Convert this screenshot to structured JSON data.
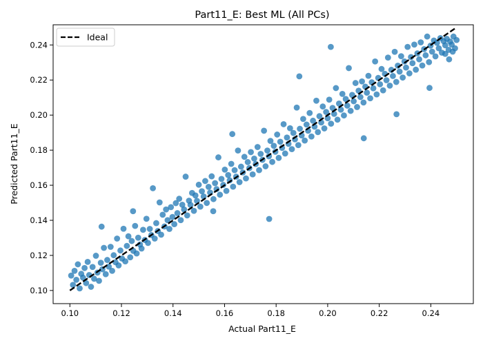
{
  "chart_data": {
    "type": "scatter",
    "title": "Part11_E: Best ML (All PCs)",
    "xlabel": "Actual Part11_E",
    "ylabel": "Predicted Part11_E",
    "xlim": [
      0.0935,
      0.2565
    ],
    "ylim": [
      0.0925,
      0.2515
    ],
    "xticks": [
      0.1,
      0.12,
      0.14,
      0.16,
      0.18,
      0.2,
      0.22,
      0.24
    ],
    "xtick_labels": [
      "0.10",
      "0.12",
      "0.14",
      "0.16",
      "0.18",
      "0.20",
      "0.22",
      "0.24"
    ],
    "yticks": [
      0.1,
      0.12,
      0.14,
      0.16,
      0.18,
      0.2,
      0.22,
      0.24
    ],
    "ytick_labels": [
      "0.10",
      "0.12",
      "0.14",
      "0.16",
      "0.18",
      "0.20",
      "0.22",
      "0.24"
    ],
    "grid": false,
    "legend": {
      "position": "upper-left",
      "entries": [
        "Ideal"
      ]
    },
    "series": [
      {
        "name": "",
        "kind": "scatter",
        "color": "#1f77b4",
        "alpha": 0.75,
        "points": [
          [
            0.1005,
            0.1085
          ],
          [
            0.1012,
            0.1032
          ],
          [
            0.1018,
            0.1112
          ],
          [
            0.1025,
            0.1061
          ],
          [
            0.1031,
            0.1149
          ],
          [
            0.1038,
            0.1012
          ],
          [
            0.1044,
            0.1095
          ],
          [
            0.1051,
            0.1073
          ],
          [
            0.1057,
            0.1128
          ],
          [
            0.1063,
            0.1042
          ],
          [
            0.1069,
            0.1163
          ],
          [
            0.1075,
            0.1088
          ],
          [
            0.1082,
            0.1021
          ],
          [
            0.1088,
            0.1134
          ],
          [
            0.1094,
            0.1067
          ],
          [
            0.1101,
            0.1198
          ],
          [
            0.1107,
            0.1102
          ],
          [
            0.1113,
            0.1055
          ],
          [
            0.112,
            0.1158
          ],
          [
            0.1126,
            0.1121
          ],
          [
            0.1132,
            0.1243
          ],
          [
            0.1139,
            0.1093
          ],
          [
            0.1145,
            0.1174
          ],
          [
            0.1151,
            0.1136
          ],
          [
            0.1158,
            0.1249
          ],
          [
            0.1164,
            0.1112
          ],
          [
            0.117,
            0.1201
          ],
          [
            0.1177,
            0.1161
          ],
          [
            0.1183,
            0.1296
          ],
          [
            0.1189,
            0.1143
          ],
          [
            0.1196,
            0.1228
          ],
          [
            0.1202,
            0.1182
          ],
          [
            0.1208,
            0.1352
          ],
          [
            0.1215,
            0.1166
          ],
          [
            0.1221,
            0.1254
          ],
          [
            0.1227,
            0.1309
          ],
          [
            0.1234,
            0.1189
          ],
          [
            0.124,
            0.1282
          ],
          [
            0.1246,
            0.1226
          ],
          [
            0.1253,
            0.1368
          ],
          [
            0.1259,
            0.1211
          ],
          [
            0.1265,
            0.1301
          ],
          [
            0.1272,
            0.1262
          ],
          [
            0.1278,
            0.1239
          ],
          [
            0.1284,
            0.1346
          ],
          [
            0.1291,
            0.1288
          ],
          [
            0.1297,
            0.1409
          ],
          [
            0.1303,
            0.1271
          ],
          [
            0.131,
            0.1351
          ],
          [
            0.1316,
            0.1316
          ],
          [
            0.1322,
            0.1583
          ],
          [
            0.1329,
            0.1296
          ],
          [
            0.1335,
            0.1384
          ],
          [
            0.1341,
            0.1339
          ],
          [
            0.1348,
            0.1502
          ],
          [
            0.1354,
            0.1318
          ],
          [
            0.136,
            0.1432
          ],
          [
            0.1367,
            0.1365
          ],
          [
            0.1373,
            0.1462
          ],
          [
            0.1379,
            0.1401
          ],
          [
            0.1386,
            0.1351
          ],
          [
            0.1392,
            0.1475
          ],
          [
            0.1398,
            0.1419
          ],
          [
            0.1405,
            0.1378
          ],
          [
            0.1411,
            0.1498
          ],
          [
            0.1417,
            0.1441
          ],
          [
            0.1424,
            0.1523
          ],
          [
            0.143,
            0.1401
          ],
          [
            0.1436,
            0.1489
          ],
          [
            0.1443,
            0.1462
          ],
          [
            0.1449,
            0.1649
          ],
          [
            0.1455,
            0.1428
          ],
          [
            0.1462,
            0.1512
          ],
          [
            0.1468,
            0.1488
          ],
          [
            0.1474,
            0.1556
          ],
          [
            0.1481,
            0.1454
          ],
          [
            0.1487,
            0.1542
          ],
          [
            0.1493,
            0.1511
          ],
          [
            0.15,
            0.1603
          ],
          [
            0.1506,
            0.1478
          ],
          [
            0.1512,
            0.1566
          ],
          [
            0.1519,
            0.1536
          ],
          [
            0.1525,
            0.1624
          ],
          [
            0.1531,
            0.1499
          ],
          [
            0.1538,
            0.1591
          ],
          [
            0.1544,
            0.1558
          ],
          [
            0.155,
            0.1651
          ],
          [
            0.1557,
            0.1521
          ],
          [
            0.1563,
            0.1612
          ],
          [
            0.1569,
            0.1578
          ],
          [
            0.1576,
            0.1759
          ],
          [
            0.1582,
            0.1546
          ],
          [
            0.1588,
            0.1636
          ],
          [
            0.1595,
            0.1602
          ],
          [
            0.1601,
            0.1689
          ],
          [
            0.1607,
            0.1568
          ],
          [
            0.1614,
            0.1658
          ],
          [
            0.162,
            0.1628
          ],
          [
            0.1626,
            0.1722
          ],
          [
            0.1633,
            0.1592
          ],
          [
            0.1639,
            0.1686
          ],
          [
            0.1645,
            0.1649
          ],
          [
            0.1652,
            0.1798
          ],
          [
            0.1658,
            0.1618
          ],
          [
            0.1664,
            0.1706
          ],
          [
            0.1671,
            0.1673
          ],
          [
            0.1677,
            0.1762
          ],
          [
            0.1683,
            0.1639
          ],
          [
            0.169,
            0.1732
          ],
          [
            0.1696,
            0.1698
          ],
          [
            0.1702,
            0.1789
          ],
          [
            0.1709,
            0.1662
          ],
          [
            0.1715,
            0.1752
          ],
          [
            0.1721,
            0.1721
          ],
          [
            0.1728,
            0.1818
          ],
          [
            0.1734,
            0.1686
          ],
          [
            0.174,
            0.1779
          ],
          [
            0.1747,
            0.1745
          ],
          [
            0.1753,
            0.1911
          ],
          [
            0.1759,
            0.1708
          ],
          [
            0.1766,
            0.1798
          ],
          [
            0.1772,
            0.1765
          ],
          [
            0.1778,
            0.1853
          ],
          [
            0.1785,
            0.1733
          ],
          [
            0.1791,
            0.1825
          ],
          [
            0.1797,
            0.1791
          ],
          [
            0.1804,
            0.1889
          ],
          [
            0.181,
            0.1756
          ],
          [
            0.1816,
            0.1848
          ],
          [
            0.1823,
            0.1813
          ],
          [
            0.1829,
            0.1948
          ],
          [
            0.1835,
            0.1781
          ],
          [
            0.1842,
            0.1872
          ],
          [
            0.1848,
            0.1836
          ],
          [
            0.1854,
            0.1925
          ],
          [
            0.1861,
            0.1806
          ],
          [
            0.1867,
            0.1898
          ],
          [
            0.1873,
            0.1862
          ],
          [
            0.188,
            0.2043
          ],
          [
            0.1886,
            0.1829
          ],
          [
            0.1892,
            0.1922
          ],
          [
            0.1899,
            0.1884
          ],
          [
            0.1905,
            0.1978
          ],
          [
            0.1911,
            0.1855
          ],
          [
            0.1918,
            0.1946
          ],
          [
            0.1924,
            0.1911
          ],
          [
            0.193,
            0.2012
          ],
          [
            0.1937,
            0.1878
          ],
          [
            0.1943,
            0.1968
          ],
          [
            0.1949,
            0.1934
          ],
          [
            0.1956,
            0.2082
          ],
          [
            0.1962,
            0.1903
          ],
          [
            0.1968,
            0.1994
          ],
          [
            0.1975,
            0.1958
          ],
          [
            0.1981,
            0.2049
          ],
          [
            0.1987,
            0.1924
          ],
          [
            0.1994,
            0.2018
          ],
          [
            0.2,
            0.1982
          ],
          [
            0.2006,
            0.2088
          ],
          [
            0.2013,
            0.1951
          ],
          [
            0.2019,
            0.2041
          ],
          [
            0.2025,
            0.2007
          ],
          [
            0.2032,
            0.2154
          ],
          [
            0.2038,
            0.1974
          ],
          [
            0.2044,
            0.2066
          ],
          [
            0.2051,
            0.2031
          ],
          [
            0.2057,
            0.2121
          ],
          [
            0.2063,
            0.1998
          ],
          [
            0.207,
            0.2092
          ],
          [
            0.2076,
            0.2054
          ],
          [
            0.2082,
            0.2268
          ],
          [
            0.2089,
            0.2024
          ],
          [
            0.2095,
            0.2115
          ],
          [
            0.2101,
            0.2079
          ],
          [
            0.2108,
            0.2183
          ],
          [
            0.2114,
            0.2046
          ],
          [
            0.212,
            0.2139
          ],
          [
            0.2127,
            0.2103
          ],
          [
            0.2133,
            0.2192
          ],
          [
            0.2139,
            0.2072
          ],
          [
            0.2146,
            0.2162
          ],
          [
            0.2152,
            0.2128
          ],
          [
            0.2158,
            0.2224
          ],
          [
            0.2165,
            0.2096
          ],
          [
            0.2171,
            0.2187
          ],
          [
            0.2177,
            0.2153
          ],
          [
            0.2184,
            0.2306
          ],
          [
            0.219,
            0.2118
          ],
          [
            0.2196,
            0.2212
          ],
          [
            0.2203,
            0.2176
          ],
          [
            0.2209,
            0.2263
          ],
          [
            0.2215,
            0.2141
          ],
          [
            0.2222,
            0.2235
          ],
          [
            0.2228,
            0.2199
          ],
          [
            0.2234,
            0.2328
          ],
          [
            0.2241,
            0.2168
          ],
          [
            0.2247,
            0.2258
          ],
          [
            0.2253,
            0.2223
          ],
          [
            0.226,
            0.2361
          ],
          [
            0.2266,
            0.2189
          ],
          [
            0.2272,
            0.2282
          ],
          [
            0.2279,
            0.2248
          ],
          [
            0.2285,
            0.2336
          ],
          [
            0.2291,
            0.2214
          ],
          [
            0.2298,
            0.2306
          ],
          [
            0.2304,
            0.2271
          ],
          [
            0.231,
            0.2389
          ],
          [
            0.2317,
            0.2238
          ],
          [
            0.2323,
            0.2331
          ],
          [
            0.2329,
            0.2296
          ],
          [
            0.2336,
            0.2402
          ],
          [
            0.2342,
            0.2259
          ],
          [
            0.2348,
            0.2352
          ],
          [
            0.2355,
            0.2318
          ],
          [
            0.2361,
            0.2415
          ],
          [
            0.2367,
            0.2283
          ],
          [
            0.2374,
            0.2376
          ],
          [
            0.238,
            0.2341
          ],
          [
            0.2386,
            0.2448
          ],
          [
            0.2393,
            0.2302
          ],
          [
            0.2399,
            0.2396
          ],
          [
            0.2405,
            0.2362
          ],
          [
            0.2412,
            0.2425
          ],
          [
            0.2418,
            0.2335
          ],
          [
            0.2424,
            0.2412
          ],
          [
            0.2431,
            0.2381
          ],
          [
            0.2437,
            0.2439
          ],
          [
            0.2443,
            0.2356
          ],
          [
            0.245,
            0.2421
          ],
          [
            0.2456,
            0.2398
          ],
          [
            0.2462,
            0.2435
          ],
          [
            0.2469,
            0.2372
          ],
          [
            0.2475,
            0.2419
          ],
          [
            0.2481,
            0.2402
          ],
          [
            0.2488,
            0.2448
          ],
          [
            0.2494,
            0.2381
          ],
          [
            0.25,
            0.2428
          ],
          [
            0.2485,
            0.2362
          ],
          [
            0.2471,
            0.2318
          ],
          [
            0.2456,
            0.2349
          ],
          [
            0.1773,
            0.1408
          ],
          [
            0.2012,
            0.2389
          ],
          [
            0.1556,
            0.1452
          ],
          [
            0.1245,
            0.1452
          ],
          [
            0.2267,
            0.2005
          ],
          [
            0.189,
            0.2221
          ],
          [
            0.1123,
            0.1364
          ],
          [
            0.214,
            0.1868
          ],
          [
            0.163,
            0.1892
          ],
          [
            0.2395,
            0.2155
          ]
        ]
      },
      {
        "name": "Ideal",
        "kind": "line",
        "color": "#000000",
        "dash": "dashed",
        "points": [
          [
            0.1,
            0.1
          ],
          [
            0.25,
            0.25
          ]
        ]
      }
    ]
  }
}
